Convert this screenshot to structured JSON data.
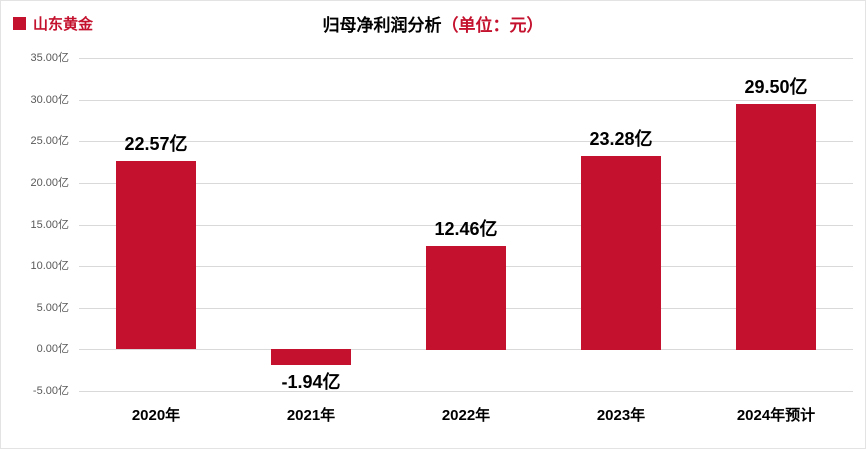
{
  "legend": {
    "label": "山东黄金",
    "color": "#c4122e"
  },
  "title": {
    "main": "归母净利润分析",
    "unit": "（单位：元）"
  },
  "chart_data": {
    "type": "bar",
    "title": "归母净利润分析（单位：元）",
    "series_name": "山东黄金",
    "categories": [
      "2020年",
      "2021年",
      "2022年",
      "2023年",
      "2024年预计"
    ],
    "values": [
      22.57,
      -1.94,
      12.46,
      23.28,
      29.5
    ],
    "bar_labels": [
      "22.57亿",
      "-1.94亿",
      "12.46亿",
      "23.28亿",
      "29.50亿"
    ],
    "ylim": [
      -5,
      35
    ],
    "ytick_values": [
      35,
      30,
      25,
      20,
      15,
      10,
      5,
      0,
      -5
    ],
    "ytick_labels": [
      "35.00亿",
      "30.00亿",
      "25.00亿",
      "20.00亿",
      "15.00亿",
      "10.00亿",
      "5.00亿",
      "0.00亿",
      "-5.00亿"
    ],
    "bar_color": "#c4122e",
    "unit_color": "#c4122e",
    "grid": true,
    "legend_position": "top-left",
    "xlabel": "",
    "ylabel": ""
  }
}
